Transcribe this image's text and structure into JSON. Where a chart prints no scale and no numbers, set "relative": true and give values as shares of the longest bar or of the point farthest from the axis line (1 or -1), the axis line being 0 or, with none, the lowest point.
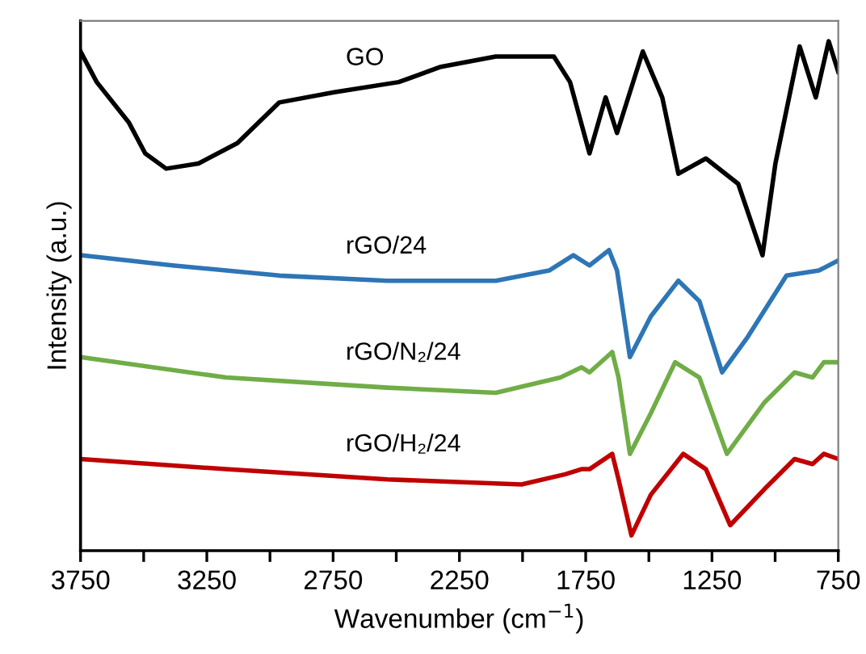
{
  "chart_data": {
    "type": "line",
    "relative": true,
    "xlabel": "Wavenumber (cm$^{−1}$)",
    "ylabel": "Intensity (a.u.)",
    "xlim": [
      3750,
      750
    ],
    "xticks": [
      3750,
      {
        "value": 3500,
        "label": null
      },
      3250,
      {
        "value": 3000,
        "label": null
      },
      2750,
      {
        "value": 2500,
        "label": null
      },
      2250,
      {
        "value": 2000,
        "label": null
      },
      1750,
      {
        "value": 1500,
        "label": null
      },
      1250,
      {
        "value": 1000,
        "label": null
      },
      750
    ],
    "grid": false,
    "legend": false,
    "marker": "none",
    "line_style": "solid",
    "tick_labels": "x",
    "series": [
      {
        "name": "GO",
        "color": "#000000",
        "x": [
          3750,
          3686,
          3558,
          3494,
          3411,
          3283,
          3129,
          2963,
          2746,
          2490,
          2323,
          2106,
          1940,
          1876,
          1812,
          1735,
          1671,
          1626,
          1524,
          1447,
          1383,
          1274,
          1146,
          1050,
          999,
          903,
          839,
          788,
          750
        ],
        "values": [
          0.98,
          0.92,
          0.84,
          0.78,
          0.75,
          0.76,
          0.8,
          0.88,
          0.9,
          0.92,
          0.95,
          0.97,
          0.97,
          0.97,
          0.92,
          0.78,
          0.89,
          0.82,
          0.98,
          0.89,
          0.74,
          0.77,
          0.72,
          0.58,
          0.76,
          0.99,
          0.89,
          1.0,
          0.94
        ]
      },
      {
        "name": "rGO/24",
        "color": "#2e75b6",
        "x": [
          3750,
          3385,
          2963,
          2535,
          2106,
          1895,
          1799,
          1735,
          1658,
          1626,
          1575,
          1492,
          1383,
          1300,
          1210,
          1108,
          955,
          827,
          750
        ],
        "values": [
          0.58,
          0.56,
          0.54,
          0.53,
          0.53,
          0.55,
          0.58,
          0.56,
          0.59,
          0.55,
          0.38,
          0.46,
          0.53,
          0.49,
          0.35,
          0.42,
          0.54,
          0.55,
          0.57
        ]
      },
      {
        "name": "rGO/N₂/24",
        "color": "#70ad47",
        "x": [
          3750,
          3174,
          2535,
          2106,
          1850,
          1767,
          1735,
          1645,
          1620,
          1575,
          1492,
          1396,
          1300,
          1191,
          1044,
          923,
          852,
          807,
          750
        ],
        "values": [
          0.38,
          0.34,
          0.32,
          0.31,
          0.34,
          0.36,
          0.35,
          0.39,
          0.34,
          0.19,
          0.27,
          0.37,
          0.34,
          0.19,
          0.29,
          0.35,
          0.34,
          0.37,
          0.37
        ]
      },
      {
        "name": "rGO/H₂/24",
        "color": "#c00000",
        "x": [
          3750,
          3174,
          2535,
          2004,
          1831,
          1767,
          1735,
          1645,
          1620,
          1569,
          1492,
          1364,
          1274,
          1178,
          1044,
          923,
          852,
          807,
          750
        ],
        "values": [
          0.18,
          0.16,
          0.14,
          0.13,
          0.15,
          0.16,
          0.16,
          0.19,
          0.14,
          0.03,
          0.11,
          0.19,
          0.16,
          0.05,
          0.12,
          0.18,
          0.17,
          0.19,
          0.18
        ]
      }
    ]
  }
}
